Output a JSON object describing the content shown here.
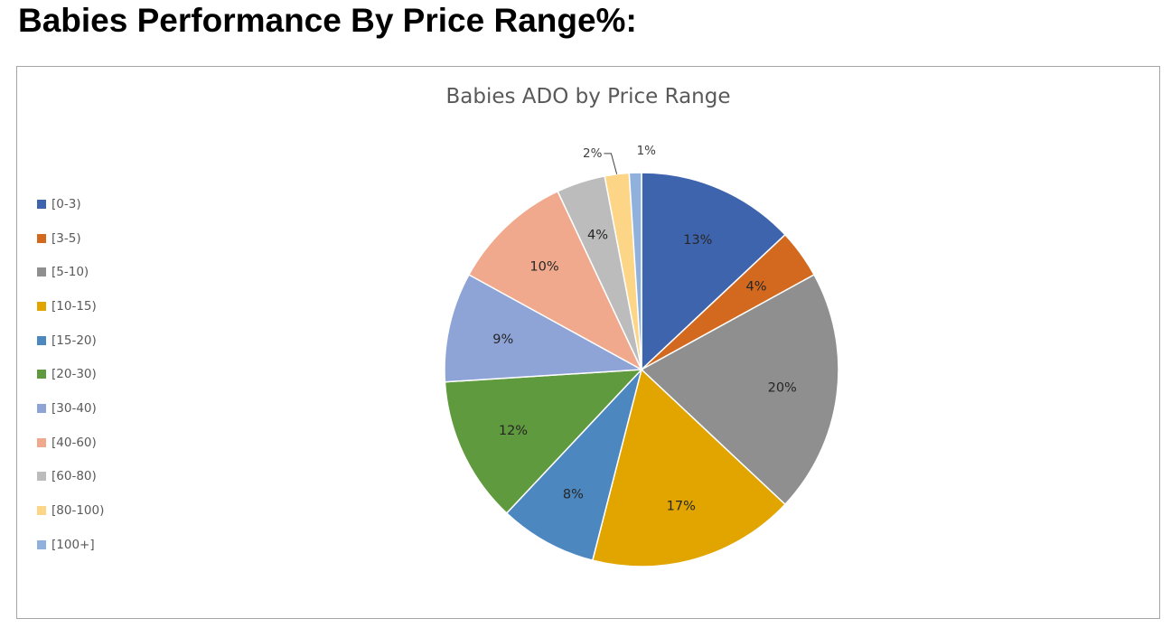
{
  "page": {
    "heading": "Babies Performance By Price Range%:"
  },
  "chart_data": {
    "type": "pie",
    "title": "Babies ADO by Price Range",
    "legend_position": "left",
    "categories": [
      "[0-3)",
      "[3-5)",
      "[5-10)",
      "[10-15)",
      "[15-20)",
      "[20-30)",
      "[30-40)",
      "[40-60)",
      "[60-80)",
      "[80-100)",
      "[100+]"
    ],
    "values": [
      13,
      4,
      20,
      17,
      8,
      12,
      9,
      10,
      4,
      2,
      1
    ],
    "data_labels": [
      "13%",
      "4%",
      "20%",
      "17%",
      "8%",
      "12%",
      "9%",
      "10%",
      "4%",
      "2%",
      "1%"
    ],
    "colors": [
      "#3f64ae",
      "#d2691f",
      "#8f8f8f",
      "#e2a500",
      "#4c87c0",
      "#5f9a3e",
      "#8ea3d6",
      "#f0a98c",
      "#bcbcbc",
      "#fdd587",
      "#8fb1dc"
    ]
  }
}
